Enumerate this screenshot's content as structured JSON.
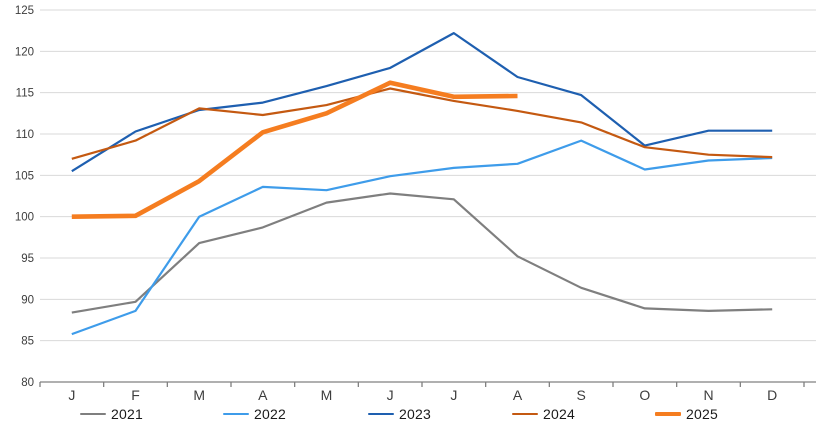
{
  "chart_data": {
    "type": "line",
    "title": "",
    "xlabel": "",
    "ylabel": "",
    "x_categories": [
      "J",
      "F",
      "M",
      "A",
      "M",
      "J",
      "J",
      "A",
      "S",
      "O",
      "N",
      "D"
    ],
    "y_axis": {
      "min": 80,
      "max": 125,
      "step": 5,
      "tick_labels": [
        "80",
        "85",
        "90",
        "95",
        "100",
        "105",
        "110",
        "115",
        "120",
        "125"
      ]
    },
    "grid": "horizontal-only",
    "legend_position": "bottom",
    "series": [
      {
        "name": "2021",
        "color": "#7F7F7F",
        "line_width": 2.2,
        "values": [
          88.4,
          89.7,
          96.8,
          98.7,
          101.7,
          102.8,
          102.1,
          95.2,
          91.4,
          88.9,
          88.6,
          88.8
        ]
      },
      {
        "name": "2022",
        "color": "#3E9CEA",
        "line_width": 2.2,
        "values": [
          85.8,
          88.6,
          100.0,
          103.6,
          103.2,
          104.9,
          105.9,
          106.4,
          109.2,
          105.7,
          106.8,
          107.1
        ]
      },
      {
        "name": "2023",
        "color": "#1E5FB0",
        "line_width": 2.2,
        "values": [
          105.5,
          110.3,
          112.9,
          113.8,
          115.8,
          118.0,
          122.2,
          116.9,
          114.7,
          108.6,
          110.4,
          110.4
        ]
      },
      {
        "name": "2024",
        "color": "#C45911",
        "line_width": 2.2,
        "values": [
          107.0,
          109.2,
          113.1,
          112.3,
          113.5,
          115.5,
          114.0,
          112.8,
          111.4,
          108.4,
          107.5,
          107.2
        ]
      },
      {
        "name": "2025",
        "color": "#F57D20",
        "line_width": 4.6,
        "values": [
          100.0,
          100.1,
          104.3,
          110.2,
          112.5,
          116.2,
          114.5,
          114.6
        ]
      }
    ]
  },
  "style_colors": {
    "gridline": "#D9D9D9",
    "axis_line": "#808080",
    "tick_mark": "#808080",
    "y_tick_label": "#3d3d3d",
    "x_tick_label": "#3d3d3d",
    "legend_text": "#1a1a1a",
    "background": "#FFFFFF"
  }
}
